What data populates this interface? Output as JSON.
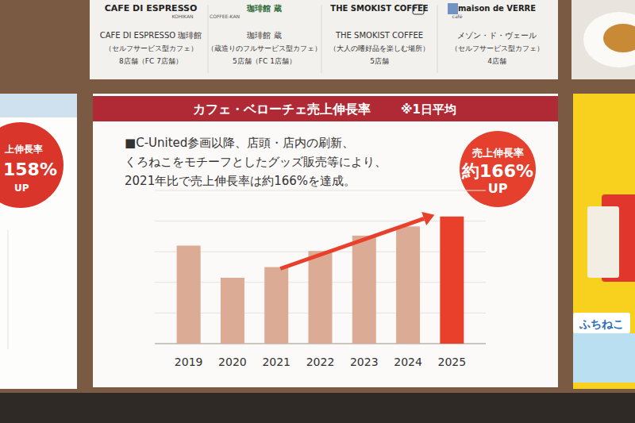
{
  "chart_data": {
    "type": "bar",
    "title": "カフェ・ベローチェ売上伸長率",
    "subtitle": "※1日平均",
    "annotations": [
      "■C-United参画以降、店頭・店内の刷新、",
      "くろねこをモチーフとしたグッズ販売等により、",
      "2021年比で売上伸長率は約166%を達成。",
      "売上伸長率",
      "約166%",
      "UP"
    ],
    "categories": [
      "2019",
      "2020",
      "2021",
      "2022",
      "2023",
      "2024",
      "2025"
    ],
    "values": [
      128,
      86,
      100,
      121,
      141,
      153,
      166
    ],
    "colors": [
      "#dcab95",
      "#dcab95",
      "#dcab95",
      "#dcab95",
      "#dcab95",
      "#dcab95",
      "#e8402a"
    ],
    "ylim": [
      0,
      200
    ],
    "yticks": [
      0,
      40,
      80,
      120,
      160,
      200
    ],
    "grid": true,
    "tick_labels": "x"
  },
  "header": {
    "brands": [
      {
        "logo": "CAFE DI ESPRESSO",
        "sub_logo": "KOHIKAN",
        "name": "CAFE DI ESPRESSO 珈琲館",
        "desc": "（セルフサービス型カフェ）",
        "stores": "8店舗（FC 7店舗）"
      },
      {
        "logo": "珈琲館 蔵",
        "sub_logo": "COFFEE-KAN",
        "name": "珈琲館 蔵",
        "desc": "（蔵造りのフルサービス型カフェ）",
        "stores": "5店舗（FC 1店舗）"
      },
      {
        "logo": "THE SMOKIST COFFEE",
        "sub_logo": "",
        "name": "THE SMOKIST COFFEE",
        "desc": "（大人の嗜好品を楽しむ場所）",
        "stores": "5店舗"
      },
      {
        "logo": "maison de VERRE",
        "sub_logo": "café",
        "name": "メゾン・ド・ヴェール",
        "desc": "（セルフサービス型カフェ）",
        "stores": "4店舗"
      }
    ]
  },
  "side_left": {
    "badge": [
      "上伸長率",
      "158%",
      "UP"
    ]
  },
  "side_right": {
    "label": "ふちねこ"
  }
}
